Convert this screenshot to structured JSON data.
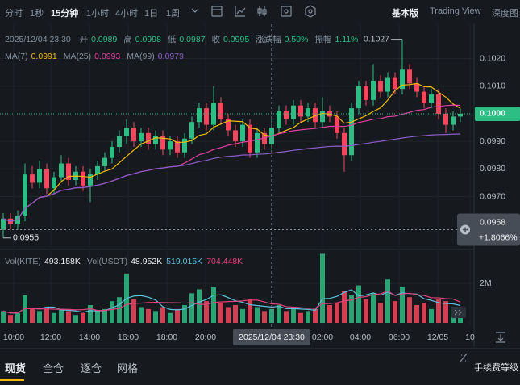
{
  "toolbar": {
    "intervals": [
      "分时",
      "1秒",
      "15分钟",
      "1小时",
      "4小时",
      "1日",
      "1周"
    ],
    "active": 2,
    "views": [
      "基本版",
      "Trading View",
      "深度图"
    ]
  },
  "info": {
    "time": "2025/12/04 23:30",
    "fields": [
      [
        "开",
        "0.0989"
      ],
      [
        "高",
        "0.0998"
      ],
      [
        "低",
        "0.0987"
      ],
      [
        "收",
        "0.0995"
      ],
      [
        "涨跌幅",
        "0.50%"
      ],
      [
        "振幅",
        "1.11%"
      ]
    ]
  },
  "ma": [
    [
      "MA(7)",
      "0.0991"
    ],
    [
      "MA(25)",
      "0.0993"
    ],
    [
      "MA(99)",
      "0.0979"
    ]
  ],
  "vol": {
    "items": [
      [
        "Vol(KITE)",
        "493.158K"
      ],
      [
        "Vol(USDT)",
        "48.952K"
      ]
    ],
    "extra": [
      "519.015K",
      "704.448K"
    ]
  },
  "chart": {
    "type": "candlestick",
    "candles": [
      [
        0.0958,
        0.0964,
        0.0955,
        0.0962,
        600000
      ],
      [
        0.0962,
        0.0964,
        0.0958,
        0.096,
        400000
      ],
      [
        0.096,
        0.0965,
        0.0958,
        0.0963,
        500000
      ],
      [
        0.0963,
        0.0982,
        0.0961,
        0.0978,
        1400000
      ],
      [
        0.0978,
        0.0981,
        0.0973,
        0.0975,
        700000
      ],
      [
        0.0975,
        0.0983,
        0.0973,
        0.098,
        600000
      ],
      [
        0.098,
        0.0982,
        0.0971,
        0.0973,
        800000
      ],
      [
        0.0973,
        0.0979,
        0.0971,
        0.0977,
        500000
      ],
      [
        0.0977,
        0.0985,
        0.0975,
        0.0982,
        700000
      ],
      [
        0.0982,
        0.0984,
        0.0974,
        0.0976,
        600000
      ],
      [
        0.0976,
        0.0981,
        0.0974,
        0.0979,
        400000
      ],
      [
        0.0979,
        0.0981,
        0.0972,
        0.0974,
        500000
      ],
      [
        0.0974,
        0.098,
        0.0968,
        0.0978,
        900000
      ],
      [
        0.0978,
        0.0983,
        0.0976,
        0.0981,
        600000
      ],
      [
        0.0981,
        0.0986,
        0.0979,
        0.0984,
        700000
      ],
      [
        0.0984,
        0.099,
        0.0982,
        0.0988,
        1100000
      ],
      [
        0.0988,
        0.0994,
        0.0986,
        0.0992,
        1300000
      ],
      [
        0.0992,
        0.0998,
        0.0989,
        0.0995,
        2500000
      ],
      [
        0.0995,
        0.0997,
        0.0988,
        0.099,
        1200000
      ],
      [
        0.099,
        0.0995,
        0.0988,
        0.0993,
        800000
      ],
      [
        0.0993,
        0.0995,
        0.0987,
        0.0989,
        700000
      ],
      [
        0.0989,
        0.0994,
        0.0987,
        0.0992,
        600000
      ],
      [
        0.0992,
        0.0994,
        0.0985,
        0.0987,
        800000
      ],
      [
        0.0987,
        0.0992,
        0.0985,
        0.099,
        500000
      ],
      [
        0.099,
        0.0992,
        0.0984,
        0.0986,
        700000
      ],
      [
        0.0986,
        0.0993,
        0.0984,
        0.0991,
        900000
      ],
      [
        0.0991,
        0.0999,
        0.0989,
        0.0997,
        1500000
      ],
      [
        0.0997,
        0.1004,
        0.0995,
        0.1002,
        1700000
      ],
      [
        0.1002,
        0.1004,
        0.0994,
        0.0996,
        1100000
      ],
      [
        0.0996,
        0.101,
        0.0994,
        0.1004,
        1800000
      ],
      [
        0.1004,
        0.1006,
        0.0996,
        0.0998,
        1000000
      ],
      [
        0.0998,
        0.1,
        0.0992,
        0.0994,
        800000
      ],
      [
        0.0994,
        0.0996,
        0.0988,
        0.099,
        900000
      ],
      [
        0.099,
        0.0998,
        0.0988,
        0.0996,
        700000
      ],
      [
        0.0996,
        0.0998,
        0.0984,
        0.0986,
        1200000
      ],
      [
        0.0986,
        0.0995,
        0.0984,
        0.0993,
        800000
      ],
      [
        0.0993,
        0.0995,
        0.0987,
        0.0989,
        600000
      ],
      [
        0.0989,
        0.0998,
        0.0987,
        0.0995,
        700000
      ],
      [
        0.0995,
        0.1003,
        0.0993,
        0.1001,
        900000
      ],
      [
        0.1001,
        0.1003,
        0.0996,
        0.0998,
        600000
      ],
      [
        0.0998,
        0.1005,
        0.0996,
        0.1003,
        800000
      ],
      [
        0.1003,
        0.1005,
        0.0997,
        0.0999,
        500000
      ],
      [
        0.0999,
        0.1004,
        0.0997,
        0.1002,
        600000
      ],
      [
        0.1002,
        0.1004,
        0.0995,
        0.0997,
        700000
      ],
      [
        0.0997,
        0.1006,
        0.0995,
        0.1001,
        3500000
      ],
      [
        0.1001,
        0.1003,
        0.0997,
        0.0999,
        900000
      ],
      [
        0.0999,
        0.1001,
        0.0991,
        0.0993,
        1000000
      ],
      [
        0.0993,
        0.0995,
        0.0979,
        0.0985,
        1600000
      ],
      [
        0.0985,
        0.1004,
        0.0983,
        0.1002,
        1400000
      ],
      [
        0.1002,
        0.1012,
        0.1,
        0.101,
        1900000
      ],
      [
        0.101,
        0.1012,
        0.1003,
        0.1005,
        1200000
      ],
      [
        0.1005,
        0.1018,
        0.1003,
        0.1012,
        1500000
      ],
      [
        0.1012,
        0.1014,
        0.1006,
        0.1008,
        1000000
      ],
      [
        0.1008,
        0.1015,
        0.1006,
        0.1013,
        2200000
      ],
      [
        0.1013,
        0.1015,
        0.1007,
        0.1009,
        1100000
      ],
      [
        0.1009,
        0.1027,
        0.1007,
        0.1016,
        1800000
      ],
      [
        0.1016,
        0.1018,
        0.1009,
        0.1011,
        1300000
      ],
      [
        0.1011,
        0.1013,
        0.1006,
        0.1008,
        900000
      ],
      [
        0.1008,
        0.101,
        0.1002,
        0.1004,
        1000000
      ],
      [
        0.1004,
        0.1009,
        0.1002,
        0.1007,
        700000
      ],
      [
        0.1007,
        0.1009,
        0.0998,
        0.1,
        1200000
      ],
      [
        0.1,
        0.1002,
        0.0993,
        0.0996,
        1100000
      ],
      [
        0.0996,
        0.1001,
        0.0994,
        0.0999,
        800000
      ],
      [
        0.0999,
        0.1002,
        0.0997,
        0.1,
        600000
      ]
    ],
    "ylim": [
      0.0952,
      0.1031
    ],
    "yticks": [
      {
        "value": 0.102,
        "label": "0.1020"
      },
      {
        "value": 0.101,
        "label": "0.1010"
      },
      {
        "value": 0.099,
        "label": "0.0990"
      },
      {
        "value": 0.098,
        "label": "0.0980"
      },
      {
        "value": 0.097,
        "label": "0.0970"
      }
    ],
    "vol_ylim": [
      0,
      3600000
    ],
    "vol_yticks": [
      {
        "value": 2000000,
        "label": "2M"
      }
    ],
    "current_price": {
      "value": 0.1,
      "label": "0.1000"
    },
    "cursor_price": {
      "value": 0.0958,
      "label": "0.0958"
    },
    "cursor_change": "+1.8066%",
    "high_label": "0.1027",
    "low_label": "0.0955",
    "times": [
      "10:00",
      "12:00",
      "14:00",
      "16:00",
      "18:00",
      "20:00",
      "02:00",
      "04:00",
      "06:00",
      "12/05",
      "10"
    ],
    "cursor_time": "2025/12/04 23:30",
    "colors": {
      "up": "#2ebd85",
      "down": "#f6465d",
      "ma7": "#f0b90b",
      "ma25": "#e040a0",
      "ma99": "#8a5cc9"
    }
  },
  "tabs": [
    "现货",
    "全仓",
    "逐仓",
    "网格"
  ],
  "fee": "手续费等级"
}
